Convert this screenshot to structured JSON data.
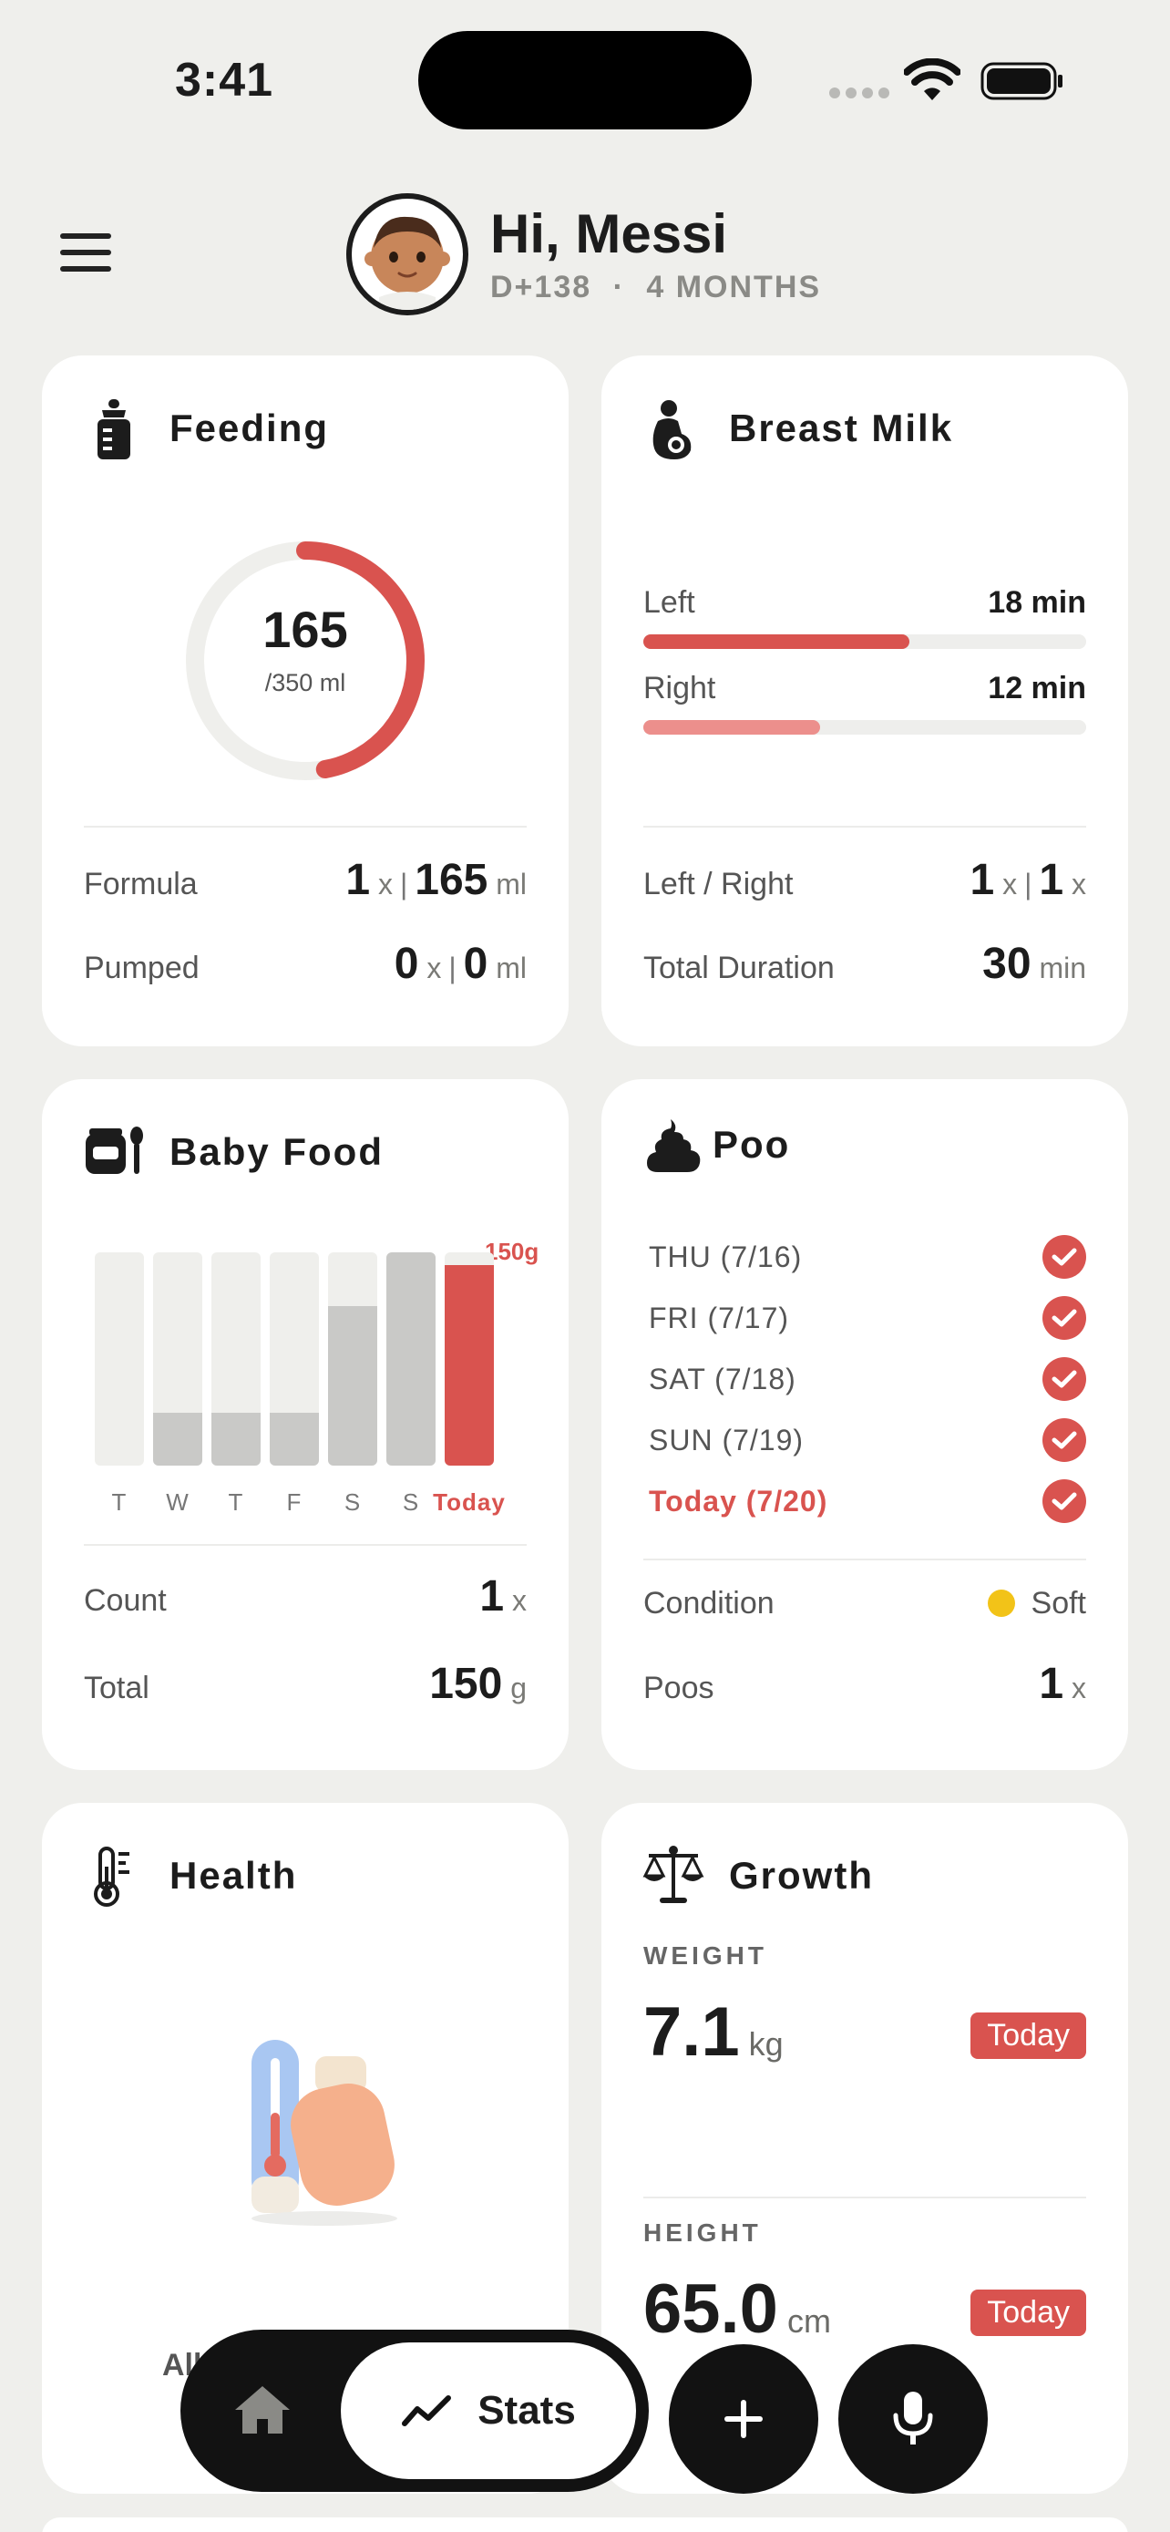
{
  "status_bar": {
    "time": "3:41"
  },
  "header": {
    "greeting": "Hi, Messi",
    "days": "D+138",
    "separator": "·",
    "age": "4 MONTHS"
  },
  "feeding": {
    "title": "Feeding",
    "current": "165",
    "goal": "/350 ml",
    "progress_fraction": 0.471,
    "formula": {
      "label": "Formula",
      "count": "1",
      "count_unit": "x",
      "sep": "|",
      "amount": "165",
      "amount_unit": "ml"
    },
    "pumped": {
      "label": "Pumped",
      "count": "0",
      "count_unit": "x",
      "sep": "|",
      "amount": "0",
      "amount_unit": "ml"
    }
  },
  "breast_milk": {
    "title": "Breast Milk",
    "left": {
      "label": "Left",
      "value": "18 min",
      "fraction": 0.6
    },
    "right": {
      "label": "Right",
      "value": "12 min",
      "fraction": 0.4
    },
    "left_right": {
      "label": "Left / Right",
      "left": "1",
      "left_unit": "x",
      "sep": "|",
      "right": "1",
      "right_unit": "x"
    },
    "total": {
      "label": "Total Duration",
      "value": "30",
      "unit": "min"
    }
  },
  "baby_food": {
    "title": "Baby Food",
    "peak_label": "150g",
    "days": [
      "T",
      "W",
      "T",
      "F",
      "S",
      "S",
      "Today"
    ],
    "fill_fractions": [
      0,
      0.25,
      0.25,
      0.25,
      0.75,
      1.0,
      0.94
    ],
    "count": {
      "label": "Count",
      "value": "1",
      "unit": "x"
    },
    "total": {
      "label": "Total",
      "value": "150",
      "unit": "g"
    }
  },
  "poo": {
    "title": "Poo",
    "days": [
      "THU (7/16)",
      "FRI (7/17)",
      "SAT (7/18)",
      "SUN (7/19)",
      "Today (7/20)"
    ],
    "condition": {
      "label": "Condition",
      "value": "Soft",
      "color": "#f2c318"
    },
    "poos": {
      "label": "Poos",
      "value": "1",
      "unit": "x"
    }
  },
  "health": {
    "title": "Health",
    "peek_text": "All"
  },
  "growth": {
    "title": "Growth",
    "weight": {
      "label": "WEIGHT",
      "value": "7.1",
      "unit": "kg",
      "badge": "Today"
    },
    "height": {
      "label": "HEIGHT",
      "value": "65.0",
      "unit": "cm",
      "badge": "Today"
    }
  },
  "nav": {
    "stats_label": "Stats"
  },
  "colors": {
    "accent": "#d9534f",
    "accent_light": "#ec8f8c",
    "background": "#efefec"
  }
}
